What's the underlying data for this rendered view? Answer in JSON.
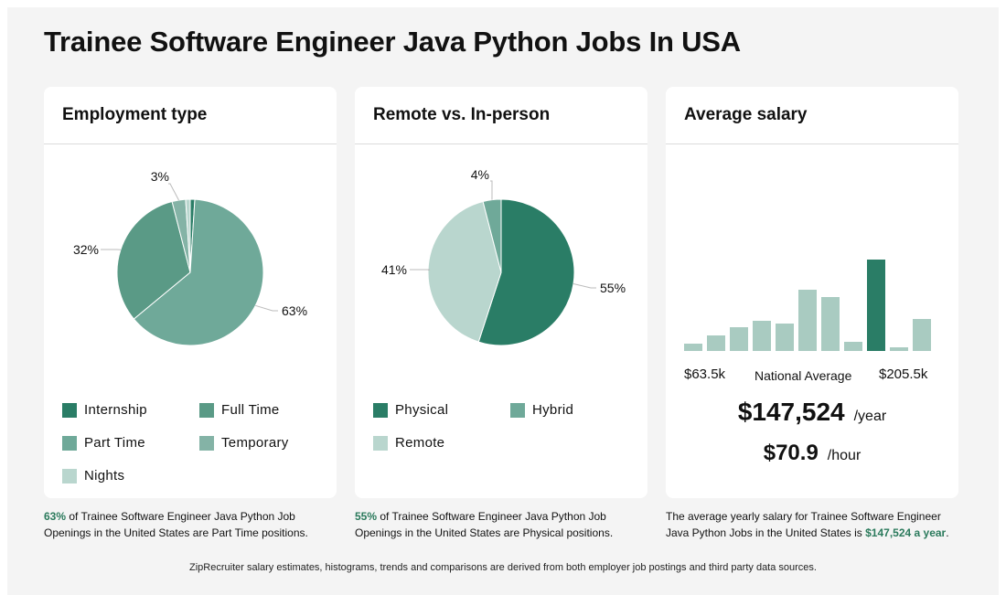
{
  "page": {
    "title": "Trainee Software Engineer Java Python Jobs In USA",
    "footer": "ZipRecruiter salary estimates, histograms, trends and comparisons are derived from both employer job postings and third party data sources."
  },
  "colors": {
    "dark_green": "#2a7d66",
    "mid_green": "#5a9a86",
    "light_green": "#6fa999",
    "pale_green": "#84b3a6",
    "very_pale_green": "#b9d6ce",
    "highlight_text": "#2b7a5c"
  },
  "employment": {
    "heading": "Employment type",
    "legend": [
      {
        "label": "Internship",
        "color": "#2a7d66"
      },
      {
        "label": "Full Time",
        "color": "#5a9a86"
      },
      {
        "label": "Part Time",
        "color": "#6fa999"
      },
      {
        "label": "Temporary",
        "color": "#84b3a6"
      },
      {
        "label": "Nights",
        "color": "#b9d6ce"
      }
    ],
    "note_highlight": "63%",
    "note_text": " of Trainee Software Engineer Java Python Job Openings in the United States are Part Time positions."
  },
  "remote": {
    "heading": "Remote vs. In-person",
    "legend": [
      {
        "label": "Physical",
        "color": "#2a7d66"
      },
      {
        "label": "Hybrid",
        "color": "#6fa999"
      },
      {
        "label": "Remote",
        "color": "#b9d6ce"
      }
    ],
    "note_highlight": "55%",
    "note_text": " of Trainee Software Engineer Java Python Job Openings in the United States are Physical positions."
  },
  "salary": {
    "heading": "Average salary",
    "min_label": "$63.5k",
    "max_label": "$205.5k",
    "national_label": "National Average",
    "yearly": "$147,524",
    "yearly_unit": "/year",
    "hourly": "$70.9",
    "hourly_unit": "/hour",
    "note_text": "The average yearly salary for Trainee Software Engineer Java Python Jobs in the United States is ",
    "note_highlight": "$147,524 a year",
    "note_end": "."
  },
  "chart_data": [
    {
      "type": "pie",
      "title": "Employment type",
      "slices": [
        {
          "name": "Internship",
          "value": 1,
          "color": "#2a7d66",
          "label": ""
        },
        {
          "name": "Part Time",
          "value": 63,
          "color": "#6fa999",
          "label": "63%"
        },
        {
          "name": "Full Time",
          "value": 32,
          "color": "#5a9a86",
          "label": "32%"
        },
        {
          "name": "Temporary",
          "value": 3,
          "color": "#84b3a6",
          "label": "3%"
        },
        {
          "name": "Nights",
          "value": 1,
          "color": "#b9d6ce",
          "label": ""
        }
      ]
    },
    {
      "type": "pie",
      "title": "Remote vs. In-person",
      "slices": [
        {
          "name": "Physical",
          "value": 55,
          "color": "#2a7d66",
          "label": "55%"
        },
        {
          "name": "Remote",
          "value": 41,
          "color": "#b9d6ce",
          "label": "41%"
        },
        {
          "name": "Hybrid",
          "value": 4,
          "color": "#6fa999",
          "label": "4%"
        }
      ]
    },
    {
      "type": "bar",
      "title": "Average salary",
      "values": [
        8,
        17,
        26,
        33,
        30,
        67,
        59,
        10,
        100,
        4,
        35
      ],
      "highlight_index": 8,
      "colors": {
        "normal": "#a9cbc1",
        "highlight": "#2a7d66"
      },
      "xlim_labels": [
        "$63.5k",
        "$205.5k"
      ]
    }
  ]
}
